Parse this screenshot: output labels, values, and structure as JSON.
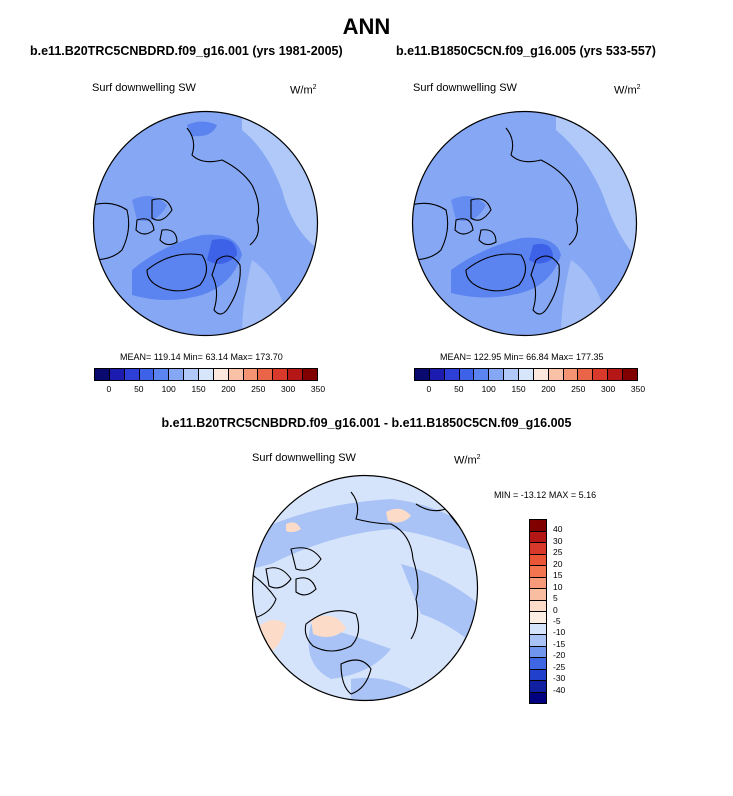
{
  "main_title": "ANN",
  "left": {
    "case_title": "b.e11.B20TRC5CNBDRD.f09_g16.001 (yrs 1981-2005)",
    "var_label": "Surf downwelling SW",
    "units_base": "W/m",
    "units_exp": "2",
    "mean_label": "MEAN=",
    "mean": "119.14",
    "min_label": "Min=",
    "min": "63.14",
    "max_label": "Max=",
    "max": "173.70"
  },
  "right": {
    "case_title": "b.e11.B1850C5CN.f09_g16.005 (yrs 533-557)",
    "var_label": "Surf downwelling SW",
    "units_base": "W/m",
    "units_exp": "2",
    "mean_label": "MEAN=",
    "mean": "122.95",
    "min_label": "Min=",
    "min": "66.84",
    "max_label": "Max=",
    "max": "177.35"
  },
  "diff": {
    "case_title": "b.e11.B20TRC5CNBDRD.f09_g16.001 - b.e11.B1850C5CN.f09_g16.005",
    "var_label": "Surf downwelling SW",
    "units_base": "W/m",
    "units_exp": "2",
    "min_label": "MIN =",
    "min": "-13.12",
    "max_label": "MAX =",
    "max": "5.16"
  },
  "chart_data": [
    {
      "type": "heatmap",
      "projection": "north-polar-stereographic",
      "title": "b.e11.B20TRC5CNBDRD.f09_g16.001 (yrs 1981-2005)",
      "variable": "Surf downwelling SW",
      "units": "W/m2",
      "stats": {
        "mean": 119.14,
        "min": 63.14,
        "max": 173.7
      },
      "colorbar": {
        "levels": [
          0,
          25,
          50,
          75,
          100,
          125,
          150,
          175,
          200,
          225,
          250,
          275,
          300,
          325,
          350
        ],
        "tick_labels": [
          "0",
          "50",
          "100",
          "150",
          "200",
          "250",
          "300",
          "350"
        ],
        "colors": [
          "#0a0a6e",
          "#1b1bb0",
          "#2d3fd6",
          "#3d62e8",
          "#5b84f0",
          "#86a8f4",
          "#b0c9f8",
          "#d8e6fb",
          "#fce8dc",
          "#f9c2a6",
          "#f49473",
          "#ea6548",
          "#d8392a",
          "#b51717",
          "#800000"
        ]
      }
    },
    {
      "type": "heatmap",
      "projection": "north-polar-stereographic",
      "title": "b.e11.B1850C5CN.f09_g16.005 (yrs 533-557)",
      "variable": "Surf downwelling SW",
      "units": "W/m2",
      "stats": {
        "mean": 122.95,
        "min": 66.84,
        "max": 177.35
      },
      "colorbar": {
        "levels": [
          0,
          25,
          50,
          75,
          100,
          125,
          150,
          175,
          200,
          225,
          250,
          275,
          300,
          325,
          350
        ],
        "tick_labels": [
          "0",
          "50",
          "100",
          "150",
          "200",
          "250",
          "300",
          "350"
        ],
        "colors": [
          "#0a0a6e",
          "#1b1bb0",
          "#2d3fd6",
          "#3d62e8",
          "#5b84f0",
          "#86a8f4",
          "#b0c9f8",
          "#d8e6fb",
          "#fce8dc",
          "#f9c2a6",
          "#f49473",
          "#ea6548",
          "#d8392a",
          "#b51717",
          "#800000"
        ]
      }
    },
    {
      "type": "heatmap",
      "projection": "north-polar-stereographic",
      "title": "b.e11.B20TRC5CNBDRD.f09_g16.001 - b.e11.B1850C5CN.f09_g16.005",
      "variable": "Surf downwelling SW",
      "units": "W/m2",
      "stats": {
        "min": -13.12,
        "max": 5.16
      },
      "colorbar": {
        "orientation": "vertical",
        "tick_labels": [
          "40",
          "30",
          "25",
          "20",
          "15",
          "10",
          "5",
          "0",
          "-5",
          "-10",
          "-15",
          "-20",
          "-25",
          "-30",
          "-40"
        ],
        "colors": [
          "#800000",
          "#b51717",
          "#d8392a",
          "#e95535",
          "#f2754f",
          "#f69a79",
          "#f9bea2",
          "#fcdcc8",
          "#fdeee4",
          "#d6e4fb",
          "#a9c3f6",
          "#6f95ee",
          "#3f67e4",
          "#2140cc",
          "#1020a0",
          "#000080"
        ]
      }
    }
  ]
}
